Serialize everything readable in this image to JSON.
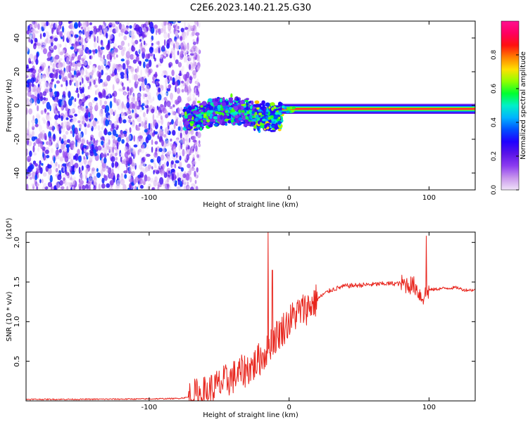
{
  "title": "C2E6.2023.140.21.25.G30",
  "chart_data": [
    {
      "type": "heatmap",
      "xlabel": "Height of straight line (km)",
      "ylabel": "Frequency (Hz)",
      "xlim": [
        -188,
        133
      ],
      "ylim": [
        -50,
        50
      ],
      "xticks": [
        -100,
        0,
        100
      ],
      "yticks": [
        -40,
        -20,
        0,
        20,
        40
      ],
      "colorbar": {
        "label": "Normalized spectral amplitude",
        "range": [
          0.0,
          1.0
        ],
        "ticks": [
          0.0,
          0.2,
          0.4,
          0.6,
          0.8
        ],
        "colormap": [
          "#f0e2f8",
          "#c896ec",
          "#8c3cf0",
          "#5a14e8",
          "#2000ff",
          "#0050ff",
          "#00b4ff",
          "#00f0c8",
          "#00ff30",
          "#90ff00",
          "#ffe000",
          "#ff8000",
          "#ff1010",
          "#ff0060",
          "#ff1090"
        ]
      },
      "features": {
        "noise_region_x": [
          -188,
          -72
        ],
        "signal_band_center_hz": -2,
        "signal_band_x": [
          -75,
          133
        ],
        "band_half_width_hz": [
          6,
          2
        ]
      }
    },
    {
      "type": "line",
      "xlabel": "Height of straight line (km)",
      "ylabel": "SNR (10 * v/v)",
      "y_multiplier": "(x10⁴)",
      "xlim": [
        -188,
        133
      ],
      "ylim": [
        0,
        2.13
      ],
      "xticks": [
        -100,
        0,
        100
      ],
      "yticks": [
        0.5,
        1.0,
        1.5,
        2.0
      ],
      "color": "#e8261e",
      "x": [
        -188,
        -150,
        -100,
        -80,
        -70,
        -60,
        -55,
        -50,
        -45,
        -40,
        -35,
        -30,
        -25,
        -20,
        -17,
        -15,
        -10,
        -5,
        0,
        5,
        10,
        15,
        20,
        25,
        30,
        40,
        50,
        60,
        70,
        80,
        85,
        90,
        95,
        100,
        110,
        120,
        125,
        133
      ],
      "values": [
        0.02,
        0.02,
        0.025,
        0.03,
        0.05,
        0.1,
        0.15,
        0.2,
        0.25,
        0.3,
        0.35,
        0.4,
        0.45,
        0.55,
        0.6,
        0.7,
        0.8,
        0.9,
        1.0,
        1.1,
        1.15,
        1.2,
        1.28,
        1.35,
        1.4,
        1.45,
        1.46,
        1.47,
        1.48,
        1.48,
        1.47,
        1.45,
        1.3,
        1.4,
        1.42,
        1.43,
        1.4,
        1.4
      ],
      "peaks": [
        {
          "x": -15,
          "y": 2.13
        },
        {
          "x": -12,
          "y": 1.65
        },
        {
          "x": 98,
          "y": 2.08
        }
      ]
    }
  ]
}
